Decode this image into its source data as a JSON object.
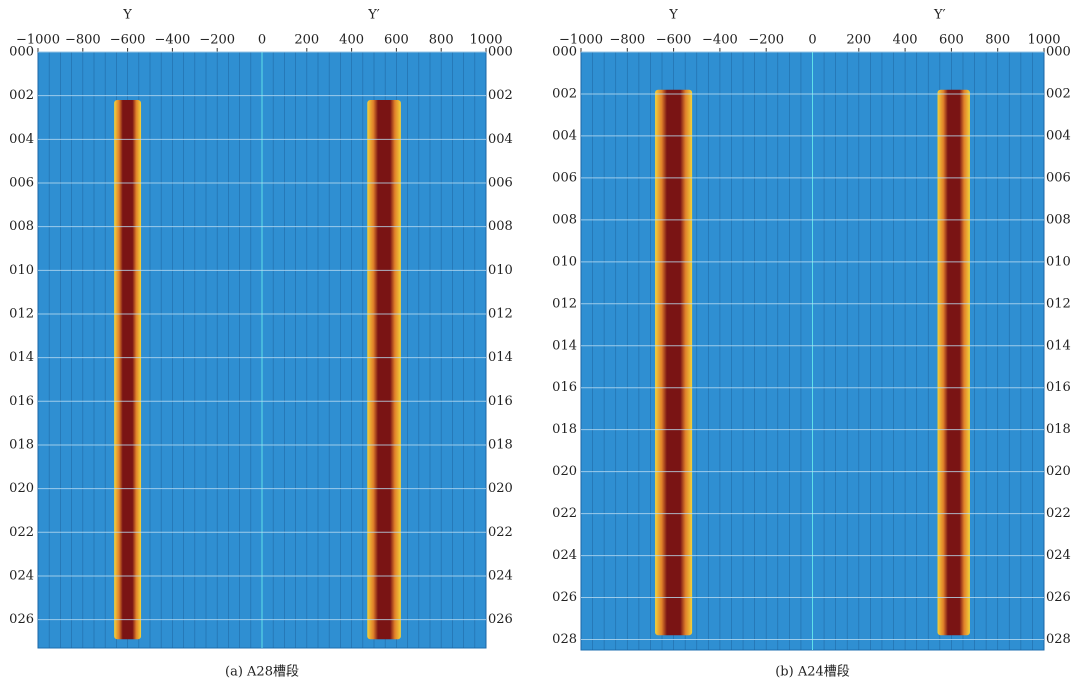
{
  "chart_data": [
    {
      "type": "band-scan",
      "caption": "(a) A28槽段",
      "annotations": [
        {
          "text": "Y",
          "x": -600
        },
        {
          "text": "Y′",
          "x": 500
        }
      ],
      "xlim": [
        -1000,
        1000
      ],
      "xticks": [
        {
          "value": -1000,
          "label": "−1000"
        },
        {
          "value": -800,
          "label": "−800"
        },
        {
          "value": -600,
          "label": "−600"
        },
        {
          "value": -400,
          "label": "−400"
        },
        {
          "value": -200,
          "label": "−200"
        },
        0,
        200,
        400,
        600,
        800,
        1000
      ],
      "ylim": [
        0,
        27.3
      ],
      "yticks": [
        {
          "value": 0,
          "label": "000"
        },
        {
          "value": 2,
          "label": "002"
        },
        {
          "value": 4,
          "label": "004"
        },
        {
          "value": 6,
          "label": "006"
        },
        {
          "value": 8,
          "label": "008"
        },
        {
          "value": 10,
          "label": "010"
        },
        {
          "value": 12,
          "label": "012"
        },
        {
          "value": 14,
          "label": "014"
        },
        {
          "value": 16,
          "label": "016"
        },
        {
          "value": 18,
          "label": "018"
        },
        {
          "value": 20,
          "label": "020"
        },
        {
          "value": 22,
          "label": "022"
        },
        {
          "value": 24,
          "label": "024"
        },
        {
          "value": 26,
          "label": "026"
        }
      ],
      "grid": true,
      "bands": [
        {
          "x": [
            -660,
            -540
          ],
          "y": [
            2.2,
            26.9
          ]
        },
        {
          "x": [
            470,
            620
          ],
          "y": [
            2.2,
            26.9
          ]
        }
      ]
    },
    {
      "type": "band-scan",
      "caption": "(b) A24槽段",
      "annotations": [
        {
          "text": "Y",
          "x": -600
        },
        {
          "text": "Y′",
          "x": 550
        }
      ],
      "xlim": [
        -1000,
        1000
      ],
      "xticks": [
        {
          "value": -1000,
          "label": "−1000"
        },
        {
          "value": -800,
          "label": "−800"
        },
        {
          "value": -600,
          "label": "−600"
        },
        {
          "value": -400,
          "label": "−400"
        },
        {
          "value": -200,
          "label": "−200"
        },
        0,
        200,
        400,
        600,
        800,
        1000
      ],
      "ylim": [
        0,
        28.5
      ],
      "yticks": [
        {
          "value": 0,
          "label": "000"
        },
        {
          "value": 2,
          "label": "002"
        },
        {
          "value": 4,
          "label": "004"
        },
        {
          "value": 6,
          "label": "006"
        },
        {
          "value": 8,
          "label": "008"
        },
        {
          "value": 10,
          "label": "010"
        },
        {
          "value": 12,
          "label": "012"
        },
        {
          "value": 14,
          "label": "014"
        },
        {
          "value": 16,
          "label": "016"
        },
        {
          "value": 18,
          "label": "018"
        },
        {
          "value": 20,
          "label": "020"
        },
        {
          "value": 22,
          "label": "022"
        },
        {
          "value": 24,
          "label": "024"
        },
        {
          "value": 26,
          "label": "026"
        },
        {
          "value": 28,
          "label": "028"
        }
      ],
      "grid": true,
      "bands": [
        {
          "x": [
            -680,
            -520
          ],
          "y": [
            1.8,
            27.8
          ]
        },
        {
          "x": [
            540,
            680
          ],
          "y": [
            1.8,
            27.8
          ]
        }
      ]
    }
  ]
}
